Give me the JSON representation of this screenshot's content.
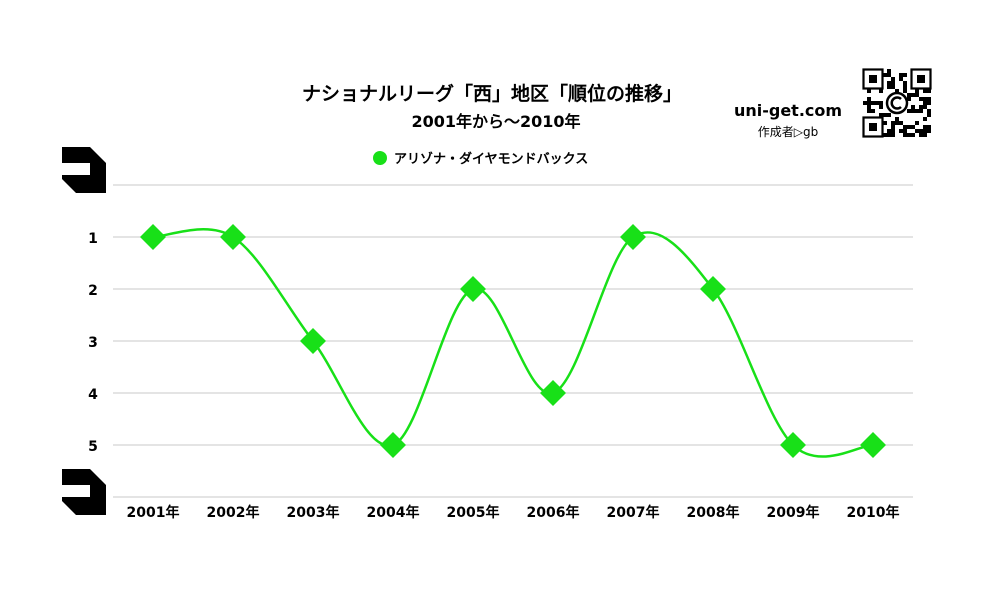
{
  "chart_data": {
    "type": "line",
    "title": "ナショナルリーグ「西」地区「順位の推移」",
    "subtitle": "2001年から～2010年",
    "categories": [
      "2001年",
      "2002年",
      "2003年",
      "2004年",
      "2005年",
      "2006年",
      "2007年",
      "2008年",
      "2009年",
      "2010年"
    ],
    "series": [
      {
        "name": "アリゾナ・ダイヤモンドバックス",
        "values": [
          1,
          1,
          3,
          5,
          2,
          4,
          1,
          2,
          5,
          5
        ],
        "color": "#18e018"
      }
    ],
    "yticks": [
      1,
      2,
      3,
      4,
      5
    ],
    "ylim": [
      0,
      6
    ],
    "y_inverted": true,
    "legend_position": "top",
    "grid": true,
    "marker": "diamond",
    "line_style": "smooth"
  },
  "branding": {
    "site": "uni-get.com",
    "author": "作成者▷gb",
    "qr_icon": "qr-code-icon"
  },
  "colors": {
    "series": "#18e018",
    "grid": "#c8c8c8",
    "text": "#000000"
  }
}
